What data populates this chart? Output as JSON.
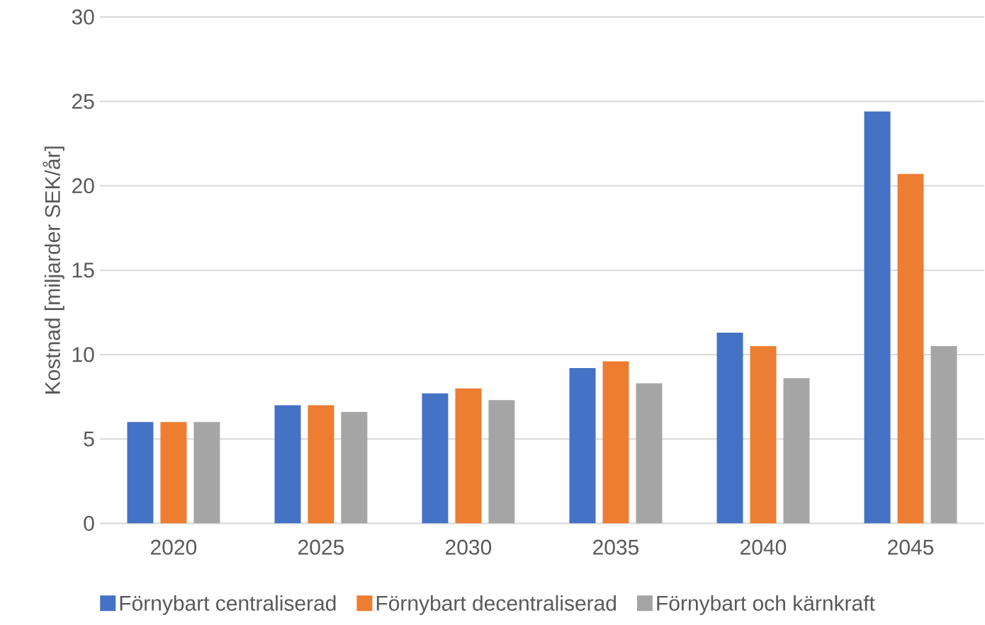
{
  "chart_data": {
    "type": "bar",
    "ylabel": "Kostnad [miljarder SEK/år]",
    "categories": [
      "2020",
      "2025",
      "2030",
      "2035",
      "2040",
      "2045"
    ],
    "series": [
      {
        "name": "Förnybart centraliserad",
        "color": "#4472c4",
        "values": [
          6.0,
          7.0,
          7.7,
          9.2,
          11.3,
          24.4
        ]
      },
      {
        "name": "Förnybart decentraliserad",
        "color": "#ed7d31",
        "values": [
          6.0,
          7.0,
          8.0,
          9.6,
          10.5,
          20.7
        ]
      },
      {
        "name": "Förnybart och kärnkraft",
        "color": "#a5a5a5",
        "values": [
          6.0,
          6.6,
          7.3,
          8.3,
          8.6,
          10.5
        ]
      }
    ],
    "ylim": [
      0,
      30
    ],
    "yticks": [
      0,
      5,
      10,
      15,
      20,
      25,
      30
    ],
    "grid": "y",
    "legend": "bottom"
  }
}
